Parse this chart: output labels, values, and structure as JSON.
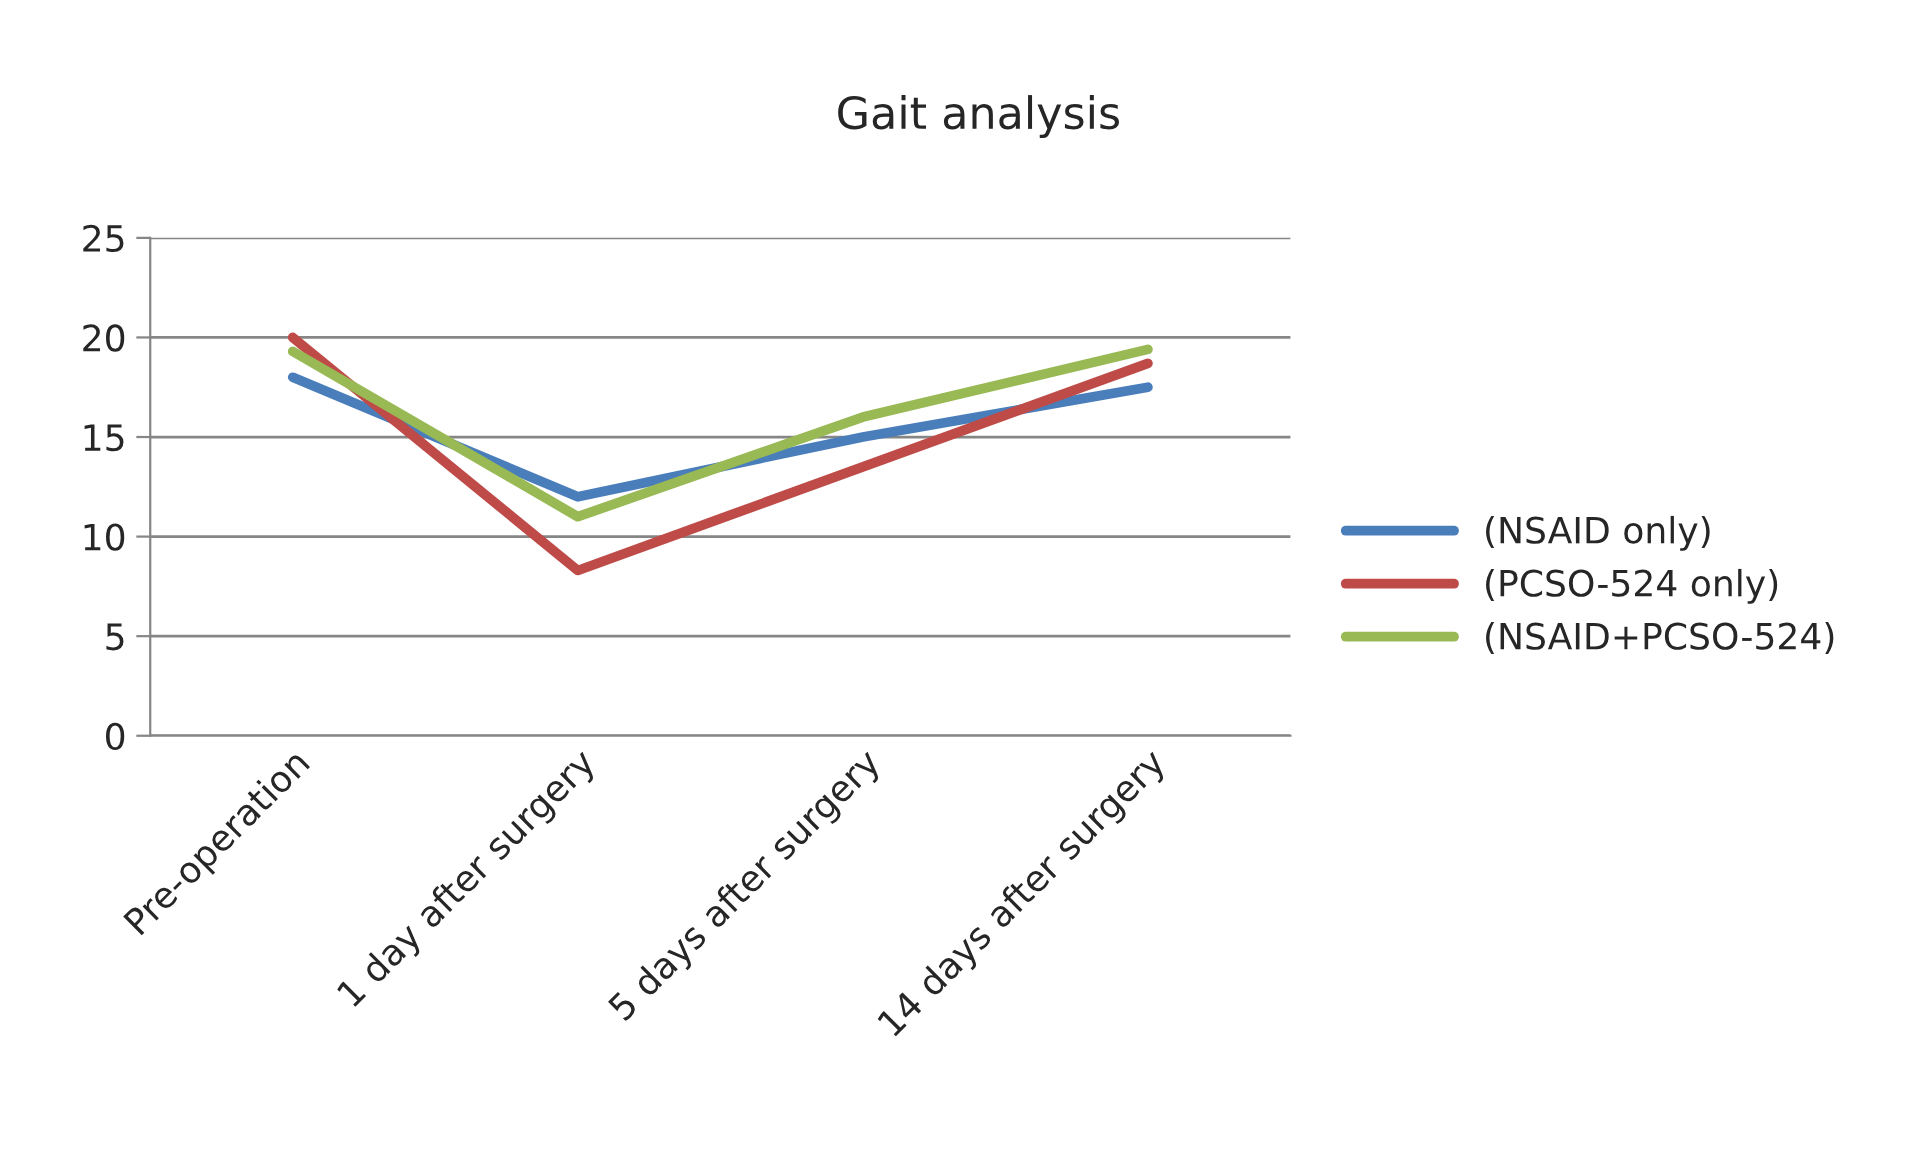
{
  "chart_data": {
    "type": "line",
    "title": "Gait analysis",
    "categories": [
      "Pre-operation",
      "1 day after surgery",
      "5 days after surgery",
      "14 days after surgery"
    ],
    "series": [
      {
        "name": "(NSAID only)",
        "color": "#4a7ebb",
        "values": [
          18,
          12,
          15,
          17.5
        ]
      },
      {
        "name": "(PCSO-524 only)",
        "color": "#be4b48",
        "values": [
          20,
          8.3,
          13.5,
          18.7
        ]
      },
      {
        "name": "(NSAID+PCSO-524)",
        "color": "#98b954",
        "values": [
          19.3,
          11,
          16,
          19.4
        ]
      }
    ],
    "ylim": [
      0,
      25
    ],
    "yticks": [
      0,
      5,
      10,
      15,
      20,
      25
    ],
    "grid": "y",
    "legend": "right",
    "marker": "none",
    "line_style": "solid"
  }
}
